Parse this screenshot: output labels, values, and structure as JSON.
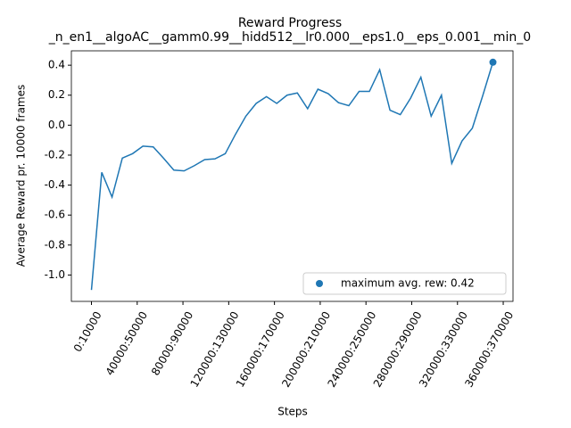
{
  "chart_data": {
    "type": "line",
    "title": "Reward Progress",
    "subtitle": "_n_en1__algoAC__gamm0.99__hidd512__lr0.000__eps1.0__eps_0.001__min_0",
    "x_label": "Steps",
    "y_label": "Average Reward pr. 10000 frames",
    "xlim": [
      -17550,
      368550
    ],
    "ylim": [
      -1.176,
      0.496
    ],
    "xticks": [
      {
        "value": 0,
        "label": "0:10000"
      },
      {
        "value": 40000,
        "label": "40000:50000"
      },
      {
        "value": 80000,
        "label": "80000:90000"
      },
      {
        "value": 120000,
        "label": "120000:130000"
      },
      {
        "value": 160000,
        "label": "160000:170000"
      },
      {
        "value": 200000,
        "label": "200000:210000"
      },
      {
        "value": 240000,
        "label": "240000:250000"
      },
      {
        "value": 280000,
        "label": "280000:290000"
      },
      {
        "value": 320000,
        "label": "320000:330000"
      },
      {
        "value": 360000,
        "label": "360000:370000"
      }
    ],
    "yticks": [
      0.4,
      0.2,
      {
        "value": 0,
        "label": "0.0"
      },
      -0.2,
      -0.4,
      -0.6,
      -0.8,
      {
        "value": -1,
        "label": "-1.0"
      }
    ],
    "legend_position": "lower right",
    "series": [
      {
        "color": "#1f77b4",
        "x": [
          0,
          9000,
          18000,
          27000,
          36000,
          45000,
          54000,
          63000,
          72000,
          81000,
          90000,
          99000,
          108000,
          117000,
          126000,
          135000,
          144000,
          153000,
          162000,
          171000,
          180000,
          189000,
          198000,
          207000,
          216000,
          225000,
          234000,
          243000,
          252000,
          261000,
          270000,
          279000,
          288000,
          297000,
          306000,
          315000,
          324000,
          333000,
          342000,
          351000
        ],
        "values": [
          -1.1,
          -0.315,
          -0.48,
          -0.22,
          -0.19,
          -0.14,
          -0.145,
          -0.22,
          -0.3,
          -0.305,
          -0.27,
          -0.23,
          -0.225,
          -0.19,
          -0.06,
          0.06,
          0.145,
          0.19,
          0.145,
          0.2,
          0.215,
          0.11,
          0.24,
          0.21,
          0.15,
          0.13,
          0.225,
          0.225,
          0.37,
          0.1,
          0.07,
          0.18,
          0.32,
          0.06,
          0.2,
          -0.255,
          -0.105,
          -0.02,
          0.195,
          0.42
        ]
      },
      {
        "type": "scatter",
        "name": "maximum avg. rew: 0.42",
        "color": "#1f77b4",
        "x": [
          351000
        ],
        "values": [
          0.42
        ]
      }
    ]
  }
}
